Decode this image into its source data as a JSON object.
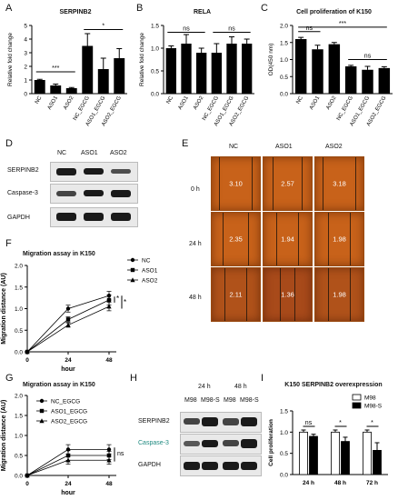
{
  "panels": {
    "A": {
      "letter": "A",
      "title": "SERPINB2",
      "ylabel": "Relative fold change",
      "cats": [
        "NC",
        "ASO1",
        "ASO2",
        "NC_EGCG",
        "ASO1_EGCG",
        "ASO2_EGCG"
      ],
      "values": [
        1.0,
        0.6,
        0.4,
        3.5,
        1.8,
        2.6
      ],
      "errors": [
        0.05,
        0.1,
        0.05,
        0.9,
        0.8,
        0.7
      ],
      "ylim": [
        0,
        5
      ],
      "ticks": [
        "0",
        "1",
        "2",
        "3",
        "4",
        "5"
      ],
      "sig1": "***",
      "sig2": "*"
    },
    "B": {
      "letter": "B",
      "title": "RELA",
      "ylabel": "Relative fold change",
      "cats": [
        "NC",
        "ASO1",
        "ASO2",
        "NC_EGCG",
        "ASO1_EGCG",
        "ASO2_EGCG"
      ],
      "values": [
        1.0,
        1.1,
        0.9,
        0.9,
        1.1,
        1.1
      ],
      "errors": [
        0.05,
        0.2,
        0.1,
        0.2,
        0.15,
        0.1
      ],
      "ylim": [
        0,
        1.5
      ],
      "ticks": [
        "0.0",
        "0.5",
        "1.0",
        "1.5"
      ],
      "sig1": "ns",
      "sig2": "ns"
    },
    "C": {
      "letter": "C",
      "title": "Cell proliferation of K150",
      "ylabel": "OD(450 nm)",
      "cats": [
        "NC",
        "ASO1",
        "ASO2",
        "NC_EGCG",
        "ASO1_EGCG",
        "ASO2_EGCG"
      ],
      "values": [
        1.6,
        1.3,
        1.45,
        0.8,
        0.7,
        0.75
      ],
      "errors": [
        0.05,
        0.12,
        0.05,
        0.03,
        0.1,
        0.04
      ],
      "ylim": [
        0,
        2.0
      ],
      "ticks": [
        "0.0",
        "0.5",
        "1.0",
        "1.5",
        "2.0"
      ],
      "sig_ns1": "ns",
      "sig_main": "***",
      "sig_ns2": "ns"
    },
    "D": {
      "letter": "D",
      "lanes": [
        "NC",
        "ASO1",
        "ASO2"
      ],
      "rows": [
        "SERPINB2",
        "Caspase-3",
        "GAPDH"
      ]
    },
    "E": {
      "letter": "E",
      "cols": [
        "NC",
        "ASO1",
        "ASO2"
      ],
      "rows": [
        "0 h",
        "24 h",
        "48 h"
      ],
      "values": [
        [
          "3.10",
          "2.57",
          "3.18"
        ],
        [
          "2.35",
          "1.94",
          "1.98"
        ],
        [
          "2.11",
          "1.36",
          "1.98"
        ]
      ]
    },
    "F": {
      "letter": "F",
      "title": "Migration assay in K150",
      "ylabel": "Migration distance (AU)",
      "xlabel": "hour",
      "x": [
        0,
        24,
        48
      ],
      "xticks": [
        "0",
        "24",
        "48"
      ],
      "yticks": [
        "0.0",
        "0.5",
        "1.0",
        "1.5",
        "2.0"
      ],
      "ylim": [
        0,
        2.0
      ],
      "series": [
        {
          "name": "NC",
          "values": [
            0,
            1.0,
            1.3
          ],
          "err": [
            0,
            0.08,
            0.1
          ]
        },
        {
          "name": "ASO1",
          "values": [
            0,
            0.75,
            1.2
          ],
          "err": [
            0,
            0.06,
            0.12
          ]
        },
        {
          "name": "ASO2",
          "values": [
            0,
            0.62,
            1.05
          ],
          "err": [
            0,
            0.05,
            0.1
          ]
        }
      ],
      "sig": [
        "*",
        "*"
      ]
    },
    "G": {
      "letter": "G",
      "title": "Migration assay in K150",
      "ylabel": "Migration distance (AU)",
      "xlabel": "hour",
      "x": [
        0,
        24,
        48
      ],
      "xticks": [
        "0",
        "24",
        "48"
      ],
      "yticks": [
        "0.0",
        "0.5",
        "1.0",
        "1.5",
        "2.0"
      ],
      "ylim": [
        0,
        2.0
      ],
      "series": [
        {
          "name": "NC_EGCG",
          "values": [
            0,
            0.65,
            0.65
          ],
          "err": [
            0,
            0.12,
            0.12
          ]
        },
        {
          "name": "ASO1_EGCG",
          "values": [
            0,
            0.5,
            0.5
          ],
          "err": [
            0,
            0.12,
            0.1
          ]
        },
        {
          "name": "ASO2_EGCG",
          "values": [
            0,
            0.38,
            0.38
          ],
          "err": [
            0,
            0.1,
            0.1
          ]
        }
      ],
      "sig": "ns"
    },
    "H": {
      "letter": "H",
      "times": [
        "24 h",
        "48 h"
      ],
      "lanes": [
        "M98",
        "M98-S",
        "M98",
        "M98-S"
      ],
      "rows": [
        "SERPINB2",
        "Caspase-3",
        "GAPDH"
      ]
    },
    "I": {
      "letter": "I",
      "title": "K150 SERPINB2 overexpression",
      "ylabel": "Cell proliferation",
      "cats": [
        "24 h",
        "48 h",
        "72 h"
      ],
      "legend": [
        "M98",
        "M98-S"
      ],
      "series": [
        {
          "name": "M98",
          "values": [
            1.0,
            1.0,
            1.0
          ],
          "err": [
            0.05,
            0.05,
            0.05
          ]
        },
        {
          "name": "M98-S",
          "values": [
            0.9,
            0.78,
            0.57
          ],
          "err": [
            0.05,
            0.1,
            0.18
          ]
        }
      ],
      "ylim": [
        0,
        1.5
      ],
      "yticks": [
        "0.0",
        "0.5",
        "1.0",
        "1.5"
      ],
      "sig": [
        "ns",
        "*",
        "*"
      ]
    }
  }
}
